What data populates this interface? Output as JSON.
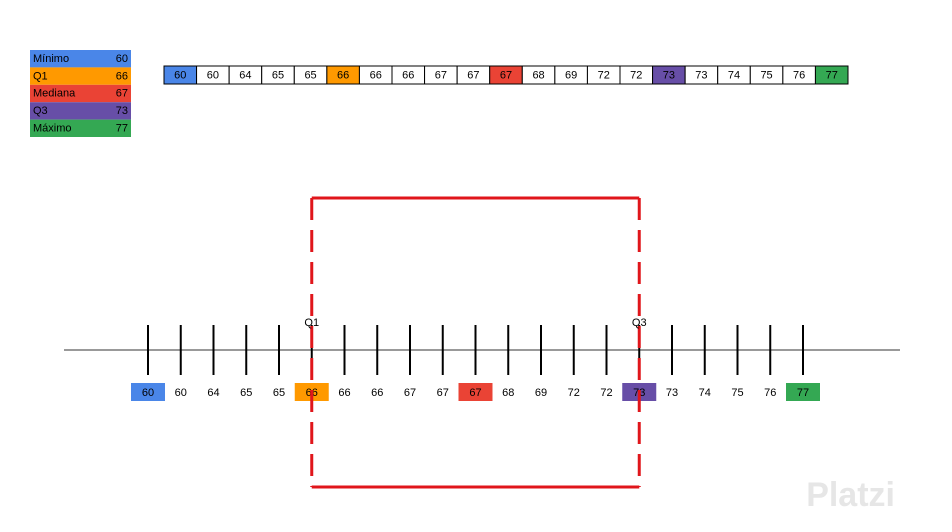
{
  "legend": [
    {
      "label": "Mínimo",
      "value": "60",
      "color": "#4a86e8"
    },
    {
      "label": "Q1",
      "value": "66",
      "color": "#ff9900"
    },
    {
      "label": "Mediana",
      "value": "67",
      "color": "#ea4335"
    },
    {
      "label": "Q3",
      "value": "73",
      "color": "#674ea7"
    },
    {
      "label": "Máximo",
      "value": "77",
      "color": "#34a853"
    }
  ],
  "values": [
    "60",
    "60",
    "64",
    "65",
    "65",
    "66",
    "66",
    "66",
    "67",
    "67",
    "67",
    "68",
    "69",
    "72",
    "72",
    "73",
    "73",
    "74",
    "75",
    "76",
    "77"
  ],
  "quartile_labels": [
    "Q1",
    "Q3"
  ],
  "watermark": "Platzi"
}
